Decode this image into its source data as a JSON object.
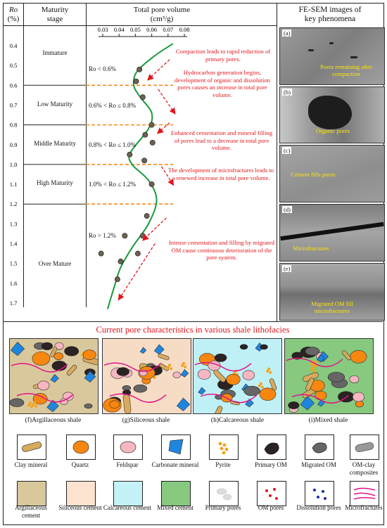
{
  "header": {
    "ro": "Ro",
    "ro_unit": "(%)",
    "maturity": "Maturity",
    "stage": "stage",
    "volume": "Total pore volume",
    "volume_unit": "(cm³/g)",
    "sem": "FE-SEM images of",
    "sem2": "key phenomena"
  },
  "x_ticks": [
    "0.03",
    "0.04",
    "0.05",
    "0.06",
    "0.07",
    "0.08"
  ],
  "y_ticks": [
    "0.4",
    "0.5",
    "0.6",
    "0.7",
    "0.8",
    "0.9",
    "1.0",
    "1.1",
    "1.2",
    "1.3",
    "1.4",
    "1.5",
    "1.6",
    "1.7"
  ],
  "stages": [
    {
      "name": "Immature",
      "range": "Ro < 0.6%"
    },
    {
      "name": "Low Maturity",
      "range": "0.6% < Ro ≤ 0.8%"
    },
    {
      "name": "Middle Maturity",
      "range": "0.8% < Ro ≤ 1.0%"
    },
    {
      "name": "High Maturity",
      "range": "1.0% < Ro ≤ 1.2%"
    },
    {
      "name": "Over Mature",
      "range": "Ro > 1.2%"
    }
  ],
  "annotations": [
    "Compaction leads to rapid reduction of primary pores.",
    "Hydrocarbon generation begins, development of organic and dissolution pores causes an increase in total pore volume.",
    "Enhanced cementation and mineral filling of pores lead to a decrease in total pore volume.",
    "The development of microfractures leads to a renewed increase in total pore volume.",
    "Intense cementation and filling by migrated OM cause continuous deterioration of the pore system."
  ],
  "chart_data": {
    "type": "scatter",
    "xlabel": "Total pore volume (cm³/g)",
    "ylabel": "Ro (%)",
    "xlim": [
      0.03,
      0.08
    ],
    "ylim": [
      0.4,
      1.7
    ],
    "x_axis_position": "top",
    "y_inverted": true,
    "points": [
      {
        "x": 0.0525,
        "y": 0.52
      },
      {
        "x": 0.0505,
        "y": 0.58
      },
      {
        "x": 0.0545,
        "y": 0.66
      },
      {
        "x": 0.06,
        "y": 0.8
      },
      {
        "x": 0.056,
        "y": 0.85
      },
      {
        "x": 0.0605,
        "y": 0.89
      },
      {
        "x": 0.0465,
        "y": 0.95
      },
      {
        "x": 0.0555,
        "y": 0.98
      },
      {
        "x": 0.06,
        "y": 1.1
      },
      {
        "x": 0.057,
        "y": 1.26
      },
      {
        "x": 0.0435,
        "y": 1.36
      },
      {
        "x": 0.0545,
        "y": 1.36
      },
      {
        "x": 0.029,
        "y": 1.45
      },
      {
        "x": 0.041,
        "y": 1.49
      },
      {
        "x": 0.0515,
        "y": 1.45
      },
      {
        "x": 0.039,
        "y": 1.58
      }
    ],
    "trend_line": {
      "x": [
        0.073,
        0.062,
        0.051,
        0.049,
        0.053,
        0.06,
        0.058,
        0.047,
        0.048,
        0.058,
        0.063,
        0.058,
        0.048,
        0.041,
        0.037,
        0.033
      ],
      "y": [
        0.39,
        0.45,
        0.53,
        0.6,
        0.66,
        0.74,
        0.82,
        0.94,
        1.0,
        1.08,
        1.18,
        1.3,
        1.42,
        1.52,
        1.62,
        1.73
      ]
    },
    "boundaries": [
      0.6,
      0.8,
      1.0,
      1.2
    ],
    "colors": {
      "trend": "#1a9a3a",
      "points": "#6d6252",
      "boundary": "#f28c1f",
      "arrows": "#e3161d"
    }
  },
  "sem_panels": [
    {
      "letter": "(a)",
      "caption": "Pores  remaining after compaction"
    },
    {
      "letter": "(b)",
      "caption": "Organic pores"
    },
    {
      "letter": "(c)",
      "caption": "Cement fills pores"
    },
    {
      "letter": "(d)",
      "caption": "Microfractures"
    },
    {
      "letter": "(e)",
      "caption": "Migrated OM fill microfractures"
    }
  ],
  "bottom_title": "Current pore characteristics in various shale lithofacies",
  "lithofacies": [
    {
      "caption": "(f)Argillaceous shale",
      "bg": "#d9c89c"
    },
    {
      "caption": "(g)Siliceous shale",
      "bg": "#f7dcc5"
    },
    {
      "caption": "(h)Calcareous shale",
      "bg": "#bff0f5"
    },
    {
      "caption": "(i)Mixed shale",
      "bg": "#86c97f"
    }
  ],
  "legend_row1": [
    {
      "label": "Clay mineral",
      "icon": "clay-icon"
    },
    {
      "label": "Quartz",
      "icon": "quartz-icon"
    },
    {
      "label": "Feldspar",
      "icon": "feldspar-icon"
    },
    {
      "label": "Carbonate mineral",
      "icon": "carbonate-icon"
    },
    {
      "label": "Pyrite",
      "icon": "pyrite-icon"
    },
    {
      "label": "Primary OM",
      "icon": "primary-om-icon"
    },
    {
      "label": "Migrated OM",
      "icon": "migrated-om-icon"
    },
    {
      "label": "OM-clay composites",
      "icon": "om-clay-icon"
    }
  ],
  "legend_row2": [
    {
      "label": "Argillaceous cement",
      "icon": "argillaceous-cement-swatch"
    },
    {
      "label": "Siliceous cement",
      "icon": "siliceous-cement-swatch"
    },
    {
      "label": "Calcareous cement",
      "icon": "calcareous-cement-swatch"
    },
    {
      "label": "Mixed cement",
      "icon": "mixed-cement-swatch"
    },
    {
      "label": "Primary pores",
      "icon": "primary-pores-icon"
    },
    {
      "label": "OM pores",
      "icon": "om-pores-icon"
    },
    {
      "label": "Dissolution pores",
      "icon": "dissolution-pores-icon"
    },
    {
      "label": "Microfractures",
      "icon": "microfractures-icon"
    }
  ]
}
